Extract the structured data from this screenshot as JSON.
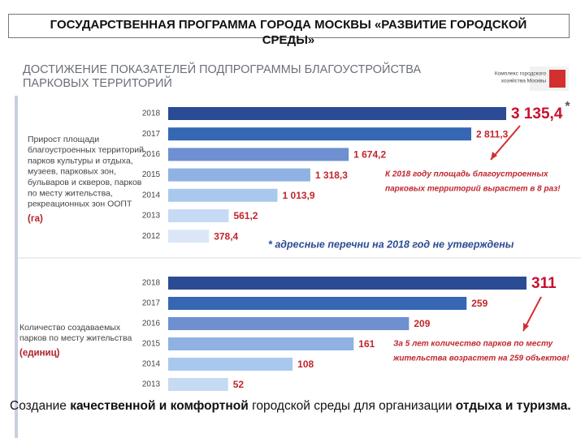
{
  "header": {
    "title": "ГОСУДАРСТВЕННАЯ ПРОГРАММА ГОРОДА МОСКВЫ «РАЗВИТИЕ ГОРОДСКОЙ СРЕДЫ»"
  },
  "slide": {
    "title_lines": [
      "ДОСТИЖЕНИЕ ПОКАЗАТЕЛЕЙ ПОДПРОГРАММЫ БЛАГОУСТРОЙСТВА",
      "ПАРКОВЫХ ТЕРРИТОРИЙ"
    ],
    "logo_lines": [
      "Комплекс городского",
      "хозяйства Москвы"
    ]
  },
  "chart_data": [
    {
      "type": "bar",
      "orientation": "horizontal",
      "description": [
        "Прирост площади",
        "благоустроенных территорий",
        "парков культуры и отдыха,",
        "музеев, парковых зон,",
        "бульваров и скверов, парков",
        "по месту жительства,",
        "рекреационных зон ООПТ"
      ],
      "unit": "(га)",
      "categories": [
        "2018",
        "2017",
        "2016",
        "2015",
        "2014",
        "2013",
        "2012"
      ],
      "values": [
        3135.4,
        2811.3,
        1674.2,
        1318.3,
        1013.9,
        561.2,
        378.4
      ],
      "value_labels": [
        "3 135,4",
        "2 811,3",
        "1 674,2",
        "1 318,3",
        "1 013,9",
        "561,2",
        "378,4"
      ],
      "colors": [
        "#2c4b95",
        "#3567b3",
        "#6e8fd0",
        "#8fb2e3",
        "#a9c8ee",
        "#c6daf3",
        "#dbe7f7"
      ],
      "note_marker": "*",
      "annotation": [
        "К 2018 году площадь благоустроенных",
        "парковых территорий вырастет в 8 раз!"
      ],
      "footnote": "* адресные перечни на 2018 год не утверждены"
    },
    {
      "type": "bar",
      "orientation": "horizontal",
      "description": [
        "Количество создаваемых",
        "парков по месту жительства"
      ],
      "unit": "(единиц)",
      "categories": [
        "2018",
        "2017",
        "2016",
        "2015",
        "2014",
        "2013"
      ],
      "values": [
        311,
        259,
        209,
        161,
        108,
        52
      ],
      "colors": [
        "#2c4b95",
        "#3567b3",
        "#6e8fd0",
        "#8fb2e3",
        "#a9c8ee",
        "#c6daf3"
      ],
      "annotation": [
        "За 5 лет количество парков по месту",
        "жительства возрастет на 259 объектов!"
      ]
    }
  ],
  "footer": {
    "parts": [
      "Создание ",
      "качественной и комфортной",
      " городской среды для организации ",
      "отдыха и туризма."
    ]
  }
}
